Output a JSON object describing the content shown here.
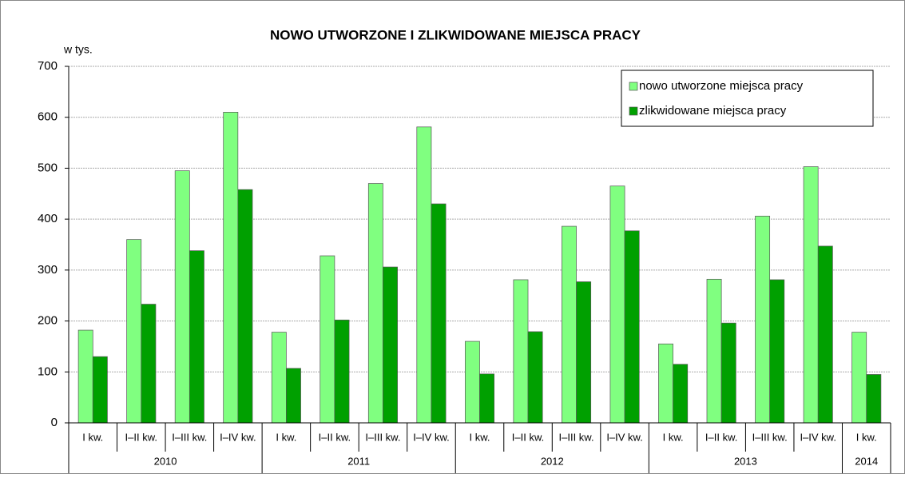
{
  "chart_data": {
    "type": "bar",
    "title": "NOWO UTWORZONE I ZLIKWIDOWANE MIEJSCA PRACY",
    "y_label": "w tys.",
    "category_groups": [
      {
        "group": "2010",
        "categories": [
          "I kw.",
          "I–II kw.",
          "I–III kw.",
          "I–IV kw."
        ]
      },
      {
        "group": "2011",
        "categories": [
          "I kw.",
          "I–II kw.",
          "I–III kw.",
          "I–IV kw."
        ]
      },
      {
        "group": "2012",
        "categories": [
          "I kw.",
          "I–II kw.",
          "I–III kw.",
          "I–IV kw."
        ]
      },
      {
        "group": "2013",
        "categories": [
          "I kw.",
          "I–II kw.",
          "I–III kw.",
          "I–IV kw."
        ]
      },
      {
        "group": "2014",
        "categories": [
          "I kw."
        ]
      }
    ],
    "series": [
      {
        "name": "nowo utworzone miejsca pracy",
        "color": "#80ff80",
        "values": [
          182,
          360,
          495,
          610,
          178,
          328,
          470,
          581,
          160,
          281,
          386,
          465,
          155,
          282,
          406,
          503,
          178
        ]
      },
      {
        "name": "zlikwidowane miejsca pracy",
        "color": "#00a000",
        "values": [
          130,
          233,
          338,
          458,
          107,
          202,
          306,
          430,
          96,
          179,
          277,
          377,
          115,
          196,
          281,
          347,
          95
        ]
      }
    ],
    "ylim": [
      0,
      700
    ],
    "yticks": [
      0,
      100,
      200,
      300,
      400,
      500,
      600,
      700
    ],
    "grid": true,
    "legend": "top-right"
  }
}
